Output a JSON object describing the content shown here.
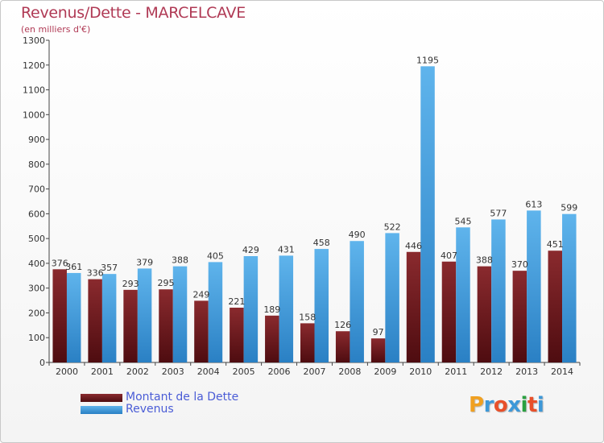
{
  "title": "Revenus/Dette - MARCELCAVE",
  "subtitle": "(en milliers d'€)",
  "colors": {
    "dette": "#6e1a1e",
    "revenus": "#3d98d8",
    "title": "#b03a55",
    "legend_text": "#4a5cd6"
  },
  "legend": [
    {
      "label": "Montant de la Dette",
      "icon": "dark-red-swatch"
    },
    {
      "label": "Revenus",
      "icon": "blue-swatch"
    }
  ],
  "logo": {
    "text": "Proxiti",
    "letters": [
      "P",
      "r",
      "o",
      "x",
      "i",
      "t",
      "i"
    ],
    "colors": [
      "#f0a020",
      "#3d98d8",
      "#e8502a",
      "#3d98d8",
      "#2aa040",
      "#e8502a",
      "#3d98d8"
    ]
  },
  "chart_data": {
    "type": "bar",
    "title": "Revenus/Dette - MARCELCAVE",
    "subtitle": "(en milliers d'€)",
    "categories": [
      "2000",
      "2001",
      "2002",
      "2003",
      "2004",
      "2005",
      "2006",
      "2007",
      "2008",
      "2009",
      "2010",
      "2011",
      "2012",
      "2013",
      "2014"
    ],
    "series": [
      {
        "name": "Montant de la Dette",
        "values": [
          376,
          336,
          293,
          295,
          249,
          221,
          189,
          158,
          126,
          97,
          446,
          407,
          388,
          370,
          451
        ]
      },
      {
        "name": "Revenus",
        "values": [
          361,
          357,
          379,
          388,
          405,
          429,
          431,
          458,
          490,
          522,
          1195,
          545,
          577,
          613,
          599
        ]
      }
    ],
    "ylim": [
      0,
      1300
    ],
    "yticks": [
      0,
      100,
      200,
      300,
      400,
      500,
      600,
      700,
      800,
      900,
      1000,
      1100,
      1200,
      1300
    ],
    "grid": false,
    "legend_position": "bottom-left",
    "xlabel": "",
    "ylabel": ""
  }
}
